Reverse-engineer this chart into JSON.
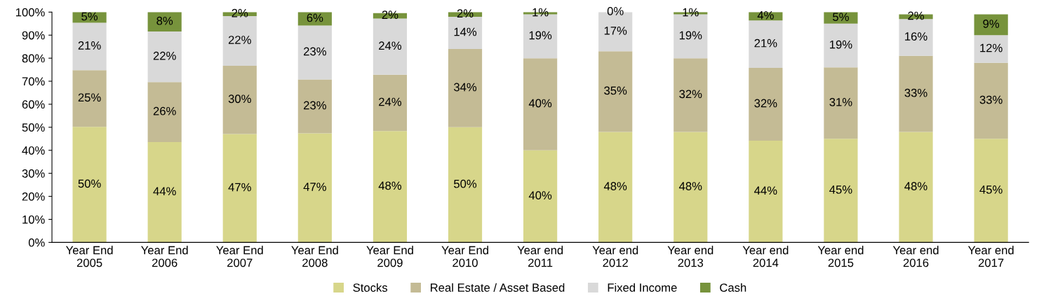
{
  "chart_data": {
    "type": "bar",
    "stacked": true,
    "categories": [
      "Year End\n2005",
      "Year End\n2006",
      "Year End\n2007",
      "Year End\n2008",
      "Year End\n2009",
      "Year End\n2010",
      "Year end\n2011",
      "Year end\n2012",
      "Year end\n2013",
      "Year end\n2014",
      "Year end\n2015",
      "Year end\n2016",
      "Year end\n2017"
    ],
    "series": [
      {
        "name": "Stocks",
        "color": "#d7d68a",
        "values": [
          50.2,
          43.6,
          47.1,
          47.4,
          48.4,
          50,
          40,
          48,
          48,
          44.2,
          45,
          48,
          45
        ],
        "value_labels": [
          "50%",
          "44%",
          "47%",
          "47%",
          "48%",
          "50%",
          "40%",
          "48%",
          "48%",
          "44%",
          "45%",
          "48%",
          "45%"
        ]
      },
      {
        "name": "Real Estate / Asset Based",
        "color": "#c4bb95",
        "values": [
          24.6,
          26.0,
          29.6,
          23.4,
          24.4,
          34,
          40,
          35,
          32,
          31.6,
          31,
          33,
          33
        ],
        "value_labels": [
          "25%",
          "26%",
          "30%",
          "23%",
          "24%",
          "34%",
          "40%",
          "35%",
          "32%",
          "32%",
          "31%",
          "33%",
          "33%"
        ]
      },
      {
        "name": "Fixed Income",
        "color": "#d9d9d9",
        "values": [
          20.6,
          22.0,
          21.6,
          23.4,
          24.4,
          14,
          19,
          17,
          19,
          20.6,
          19,
          16,
          12
        ],
        "value_labels": [
          "21%",
          "22%",
          "22%",
          "23%",
          "24%",
          "14%",
          "19%",
          "17%",
          "19%",
          "21%",
          "19%",
          "16%",
          "12%"
        ]
      },
      {
        "name": "Cash",
        "color": "#77933c",
        "values": [
          4.6,
          8.4,
          1.7,
          5.8,
          2.4,
          2,
          1,
          0,
          1,
          3.6,
          5,
          2,
          9
        ],
        "value_labels": [
          "5%",
          "8%",
          "2%",
          "6%",
          "2%",
          "2%",
          "1%",
          "0%",
          "1%",
          "4%",
          "5%",
          "2%",
          "9%"
        ]
      }
    ],
    "ylim": [
      0,
      100
    ],
    "yticks": [
      {
        "value": 0,
        "label": "0%"
      },
      {
        "value": 10,
        "label": "10%"
      },
      {
        "value": 20,
        "label": "20%"
      },
      {
        "value": 30,
        "label": "30%"
      },
      {
        "value": 40,
        "label": "40%"
      },
      {
        "value": 50,
        "label": "50%"
      },
      {
        "value": 60,
        "label": "60%"
      },
      {
        "value": 70,
        "label": "70%"
      },
      {
        "value": 80,
        "label": "80%"
      },
      {
        "value": 90,
        "label": "90%"
      },
      {
        "value": 100,
        "label": "100%"
      }
    ],
    "grid": false,
    "legend": "bottom"
  }
}
